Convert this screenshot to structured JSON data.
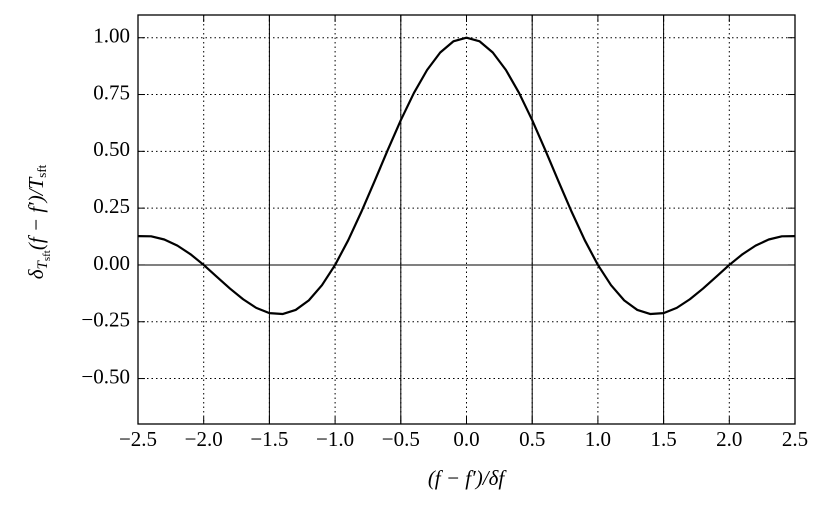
{
  "chart_data": {
    "type": "line",
    "xlabel": "(f − f′)/δf",
    "ylabel": [
      "δ",
      "T",
      "sft",
      "(f − f′)/",
      "T",
      "sft"
    ],
    "x": [
      -2.5,
      -2.4,
      -2.3,
      -2.2,
      -2.1,
      -2.0,
      -1.9,
      -1.8,
      -1.7,
      -1.6,
      -1.5,
      -1.4,
      -1.3,
      -1.2,
      -1.1,
      -1.0,
      -0.9,
      -0.8,
      -0.7,
      -0.6,
      -0.5,
      -0.4,
      -0.3,
      -0.2,
      -0.1,
      0,
      0.1,
      0.2,
      0.3,
      0.4,
      0.5,
      0.6,
      0.7,
      0.8,
      0.9,
      1.0,
      1.1,
      1.2,
      1.3,
      1.4,
      1.5,
      1.6,
      1.7,
      1.8,
      1.9,
      2.0,
      2.1,
      2.2,
      2.3,
      2.4,
      2.5
    ],
    "values": [
      0.127,
      0.126,
      0.112,
      0.085,
      0.047,
      0,
      -0.052,
      -0.104,
      -0.151,
      -0.189,
      -0.212,
      -0.216,
      -0.198,
      -0.156,
      -0.089,
      0,
      0.109,
      0.234,
      0.368,
      0.505,
      0.637,
      0.757,
      0.858,
      0.935,
      0.984,
      1,
      0.984,
      0.935,
      0.858,
      0.757,
      0.637,
      0.505,
      0.368,
      0.234,
      0.109,
      0,
      -0.089,
      -0.156,
      -0.198,
      -0.216,
      -0.212,
      -0.189,
      -0.151,
      -0.104,
      -0.052,
      0,
      0.047,
      0.085,
      0.112,
      0.126,
      0.127
    ],
    "color": "#000000",
    "xlim": [
      -2.5,
      2.5
    ],
    "ylim": [
      -0.7,
      1.1
    ],
    "xticks": [
      {
        "value": -2.5,
        "label": "−2.5"
      },
      {
        "value": -2.0,
        "label": "−2.0"
      },
      {
        "value": -1.5,
        "label": "−1.5"
      },
      {
        "value": -1.0,
        "label": "−1.0"
      },
      {
        "value": -0.5,
        "label": "−0.5"
      },
      {
        "value": 0,
        "label": "0.0"
      },
      {
        "value": 0.5,
        "label": "0.5"
      },
      {
        "value": 1.0,
        "label": "1.0"
      },
      {
        "value": 1.5,
        "label": "1.5"
      },
      {
        "value": 2.0,
        "label": "2.0"
      },
      {
        "value": 2.5,
        "label": "2.5"
      }
    ],
    "yticks": [
      {
        "value": -0.5,
        "label": "−0.50"
      },
      {
        "value": -0.25,
        "label": "−0.25"
      },
      {
        "value": 0,
        "label": "0.00"
      },
      {
        "value": 0.25,
        "label": "0.25"
      },
      {
        "value": 0.5,
        "label": "0.50"
      },
      {
        "value": 0.75,
        "label": "0.75"
      },
      {
        "value": 1.0,
        "label": "1.00"
      }
    ],
    "vlines": [
      -1.5,
      -0.5,
      0.5,
      1.5
    ],
    "hlines": [
      0
    ],
    "grid": true
  }
}
